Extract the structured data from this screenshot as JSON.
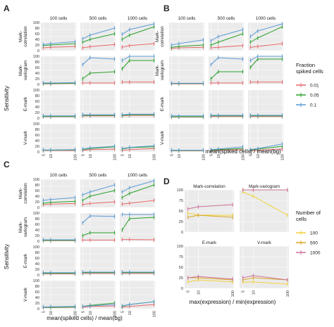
{
  "labels": {
    "panel_a": "A",
    "panel_b": "B",
    "panel_c": "C",
    "panel_d": "D",
    "sensitivity": "Sensitivity",
    "xlabel_ratio": "mean(spiked cells) / mean(bg)",
    "xlabel_expr": "max(expression) / min(expression)"
  },
  "strips": {
    "cols": [
      "100 cells",
      "500 cells",
      "1000 cells"
    ],
    "rows": [
      "Mark-\ncorrelation",
      "Mark-\nvariogram",
      "E-mark",
      "V-mark"
    ]
  },
  "x_ticks": [
    "5",
    "10",
    "100"
  ],
  "y_ticks_abc": [
    "0",
    "10",
    "20",
    "30",
    "40",
    "50",
    "60",
    "70",
    "80",
    "90",
    "100"
  ],
  "y_ticks_d": [
    "0",
    "25",
    "50",
    "75",
    "100"
  ],
  "legend_fraction": {
    "title": "Fraction\nspiked cells",
    "items": [
      {
        "label": "0.01",
        "color": "#e8686b"
      },
      {
        "label": "0.05",
        "color": "#2aa02a"
      },
      {
        "label": "0.1",
        "color": "#5b9bd5"
      }
    ]
  },
  "legend_cells": {
    "title": "Number of\ncells",
    "items": [
      {
        "label": "100",
        "color": "#f0d43a"
      },
      {
        "label": "500",
        "color": "#d9a520"
      },
      {
        "label": "1000",
        "color": "#cc6f9a"
      }
    ]
  },
  "chart_data": [
    {
      "type": "line",
      "panel": "A",
      "x": [
        5,
        10,
        100
      ],
      "x_scale": "log",
      "xlabel": "",
      "ylabel": "Sensitivity",
      "ylim": [
        0,
        100
      ],
      "grid": true,
      "facets": {
        "100 cells": {
          "Mark-correlation": {
            "0.01": [
              10,
              12,
              15
            ],
            "0.05": [
              18,
              20,
              25
            ],
            "0.1": [
              22,
              25,
              32
            ]
          },
          "Mark-variogram": {
            "0.01": [
              2,
              2,
              3
            ],
            "0.05": [
              3,
              3,
              4
            ],
            "0.1": [
              5,
              5,
              6
            ]
          },
          "E-mark": {
            "0.01": [
              5,
              5,
              5
            ],
            "0.05": [
              6,
              6,
              6
            ],
            "0.1": [
              8,
              8,
              8
            ]
          },
          "V-mark": {
            "0.01": [
              5,
              5,
              5
            ],
            "0.05": [
              6,
              6,
              7
            ],
            "0.1": [
              7,
              7,
              8
            ]
          }
        },
        "500 cells": {
          "Mark-correlation": {
            "0.01": [
              10,
              14,
              22
            ],
            "0.05": [
              30,
              40,
              60
            ],
            "0.1": [
              42,
              55,
              80
            ]
          },
          "Mark-variogram": {
            "0.01": [
              5,
              5,
              5
            ],
            "0.05": [
              20,
              40,
              45
            ],
            "0.1": [
              70,
              95,
              90
            ]
          },
          "E-mark": {
            "0.01": [
              8,
              8,
              8
            ],
            "0.05": [
              10,
              10,
              10
            ],
            "0.1": [
              12,
              12,
              12
            ]
          },
          "V-mark": {
            "0.01": [
              5,
              8,
              10
            ],
            "0.05": [
              8,
              12,
              18
            ],
            "0.1": [
              10,
              14,
              20
            ]
          }
        },
        "1000 cells": {
          "Mark-correlation": {
            "0.01": [
              12,
              18,
              25
            ],
            "0.05": [
              40,
              55,
              85
            ],
            "0.1": [
              58,
              75,
              95
            ]
          },
          "Mark-variogram": {
            "0.01": [
              8,
              8,
              8
            ],
            "0.05": [
              55,
              85,
              85
            ],
            "0.1": [
              85,
              100,
              100
            ]
          },
          "E-mark": {
            "0.01": [
              8,
              10,
              10
            ],
            "0.05": [
              10,
              12,
              12
            ],
            "0.1": [
              12,
              14,
              14
            ]
          },
          "V-mark": {
            "0.01": [
              5,
              8,
              12
            ],
            "0.05": [
              10,
              15,
              18
            ],
            "0.1": [
              12,
              16,
              22
            ]
          }
        }
      },
      "legend": "right"
    },
    {
      "type": "line",
      "panel": "B",
      "x": [
        5,
        10,
        100
      ],
      "x_scale": "log",
      "xlabel": "mean(spiked cells) / mean(bg)",
      "ylim": [
        0,
        100
      ],
      "grid": true,
      "facets": {
        "100 cells": {
          "Mark-correlation": {
            "0.01": [
              8,
              10,
              12
            ],
            "0.05": [
              12,
              15,
              20
            ],
            "0.1": [
              20,
              25,
              38
            ]
          },
          "Mark-variogram": {
            "0.01": [
              2,
              2,
              2
            ],
            "0.05": [
              3,
              3,
              3
            ],
            "0.1": [
              4,
              4,
              4
            ]
          },
          "E-mark": {
            "0.01": [
              4,
              4,
              4
            ],
            "0.05": [
              5,
              5,
              5
            ],
            "0.1": [
              8,
              8,
              8
            ]
          },
          "V-mark": {
            "0.01": [
              4,
              4,
              4
            ],
            "0.05": [
              5,
              5,
              5
            ],
            "0.1": [
              6,
              6,
              6
            ]
          }
        },
        "500 cells": {
          "Mark-correlation": {
            "0.01": [
              10,
              12,
              18
            ],
            "0.05": [
              20,
              30,
              60
            ],
            "0.1": [
              35,
              50,
              75
            ]
          },
          "Mark-variogram": {
            "0.01": [
              5,
              5,
              5
            ],
            "0.05": [
              20,
              45,
              45
            ],
            "0.1": [
              70,
              95,
              90
            ]
          },
          "E-mark": {
            "0.01": [
              6,
              6,
              6
            ],
            "0.05": [
              8,
              8,
              8
            ],
            "0.1": [
              10,
              10,
              10
            ]
          },
          "V-mark": {
            "0.01": [
              4,
              6,
              8
            ],
            "0.05": [
              6,
              8,
              12
            ],
            "0.1": [
              8,
              10,
              18
            ]
          }
        },
        "1000 cells": {
          "Mark-correlation": {
            "0.01": [
              12,
              15,
              25
            ],
            "0.05": [
              30,
              45,
              85
            ],
            "0.1": [
              50,
              70,
              95
            ]
          },
          "Mark-variogram": {
            "0.01": [
              8,
              8,
              8
            ],
            "0.05": [
              60,
              90,
              90
            ],
            "0.1": [
              85,
              100,
              100
            ]
          },
          "E-mark": {
            "0.01": [
              6,
              6,
              6
            ],
            "0.05": [
              8,
              8,
              8
            ],
            "0.1": [
              10,
              10,
              10
            ]
          },
          "V-mark": {
            "0.01": [
              4,
              6,
              10
            ],
            "0.05": [
              6,
              10,
              20
            ],
            "0.1": [
              8,
              12,
              28
            ]
          }
        }
      },
      "legend": "right"
    },
    {
      "type": "line",
      "panel": "C",
      "x": [
        5,
        10,
        100
      ],
      "x_scale": "log",
      "xlabel": "mean(spiked cells) / mean(bg)",
      "ylabel": "Sensitivity",
      "ylim": [
        0,
        100
      ],
      "grid": true,
      "facets": {
        "100 cells": {
          "Mark-correlation": {
            "0.01": [
              10,
              12,
              14
            ],
            "0.05": [
              15,
              18,
              22
            ],
            "0.1": [
              25,
              28,
              35
            ]
          },
          "Mark-variogram": {
            "0.01": [
              2,
              2,
              2
            ],
            "0.05": [
              3,
              3,
              3
            ],
            "0.1": [
              5,
              5,
              5
            ]
          },
          "E-mark": {
            "0.01": [
              4,
              4,
              4
            ],
            "0.05": [
              6,
              6,
              6
            ],
            "0.1": [
              8,
              8,
              8
            ]
          },
          "V-mark": {
            "0.01": [
              4,
              4,
              5
            ],
            "0.05": [
              5,
              5,
              6
            ],
            "0.1": [
              6,
              7,
              8
            ]
          }
        },
        "500 cells": {
          "Mark-correlation": {
            "0.01": [
              10,
              14,
              20
            ],
            "0.05": [
              25,
              40,
              60
            ],
            "0.1": [
              45,
              55,
              80
            ]
          },
          "Mark-variogram": {
            "0.01": [
              4,
              4,
              4
            ],
            "0.05": [
              20,
              30,
              30
            ],
            "0.1": [
              65,
              90,
              88
            ]
          },
          "E-mark": {
            "0.01": [
              6,
              6,
              6
            ],
            "0.05": [
              8,
              8,
              8
            ],
            "0.1": [
              10,
              10,
              10
            ]
          },
          "V-mark": {
            "0.01": [
              5,
              8,
              10
            ],
            "0.05": [
              8,
              12,
              20
            ],
            "0.1": [
              8,
              10,
              15
            ]
          }
        },
        "1000 cells": {
          "Mark-correlation": {
            "0.01": [
              12,
              15,
              25
            ],
            "0.05": [
              35,
              50,
              80
            ],
            "0.1": [
              55,
              70,
              95
            ]
          },
          "Mark-variogram": {
            "0.01": [
              6,
              6,
              5
            ],
            "0.05": [
              40,
              80,
              85
            ],
            "0.1": [
              95,
              95,
              95
            ]
          },
          "E-mark": {
            "0.01": [
              6,
              6,
              6
            ],
            "0.05": [
              8,
              8,
              8
            ],
            "0.1": [
              10,
              10,
              10
            ]
          },
          "V-mark": {
            "0.01": [
              5,
              8,
              15
            ],
            "0.05": [
              8,
              15,
              25
            ],
            "0.1": [
              10,
              15,
              25
            ]
          }
        }
      },
      "legend": "none"
    },
    {
      "type": "line",
      "panel": "D",
      "x": [
        5,
        10,
        100
      ],
      "x_scale": "log",
      "xlabel": "max(expression) / min(expression)",
      "ylim": [
        0,
        100
      ],
      "grid": true,
      "facets": {
        "Mark-correlation": {
          "100": [
            45,
            40,
            40
          ],
          "500": [
            35,
            40,
            35
          ],
          "1000": [
            55,
            60,
            65
          ]
        },
        "Mark-variogram": {
          "100": [
            95,
            85,
            40
          ],
          "500": [
            100,
            100,
            100
          ],
          "1000": [
            100,
            100,
            100
          ]
        },
        "E-mark": {
          "100": [
            15,
            20,
            15
          ],
          "500": [
            25,
            25,
            20
          ],
          "1000": [
            25,
            28,
            22
          ]
        },
        "V-mark": {
          "100": [
            15,
            15,
            10
          ],
          "500": [
            20,
            25,
            20
          ],
          "1000": [
            25,
            30,
            20
          ]
        }
      },
      "legend": "right"
    }
  ]
}
